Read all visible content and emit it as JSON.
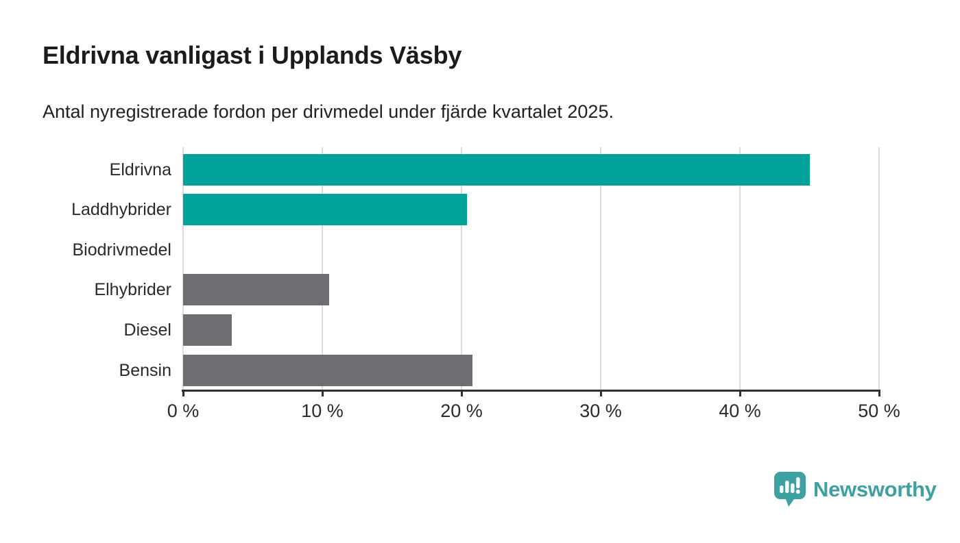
{
  "title": "Eldrivna vanligast i Upplands Väsby",
  "subtitle": "Antal nyregistrerade fordon per drivmedel under fjärde kvartalet 2025.",
  "colors": {
    "teal": "#00a29a",
    "gray": "#6d6d72",
    "grid": "#dcdcdc",
    "axis": "#2f2f2f",
    "text": "#2a2a2a",
    "logo": "#3fa0a2"
  },
  "chart_data": {
    "type": "bar",
    "orientation": "horizontal",
    "title": "Eldrivna vanligast i Upplands Väsby",
    "subtitle": "Antal nyregistrerade fordon per drivmedel under fjärde kvartalet 2025.",
    "categories": [
      "Eldrivna",
      "Laddhybrider",
      "Biodrivmedel",
      "Elhybrider",
      "Diesel",
      "Bensin"
    ],
    "values": [
      45.0,
      20.4,
      0,
      10.5,
      3.5,
      20.8
    ],
    "bar_colors": [
      "#00a29a",
      "#00a29a",
      "#6d6d72",
      "#6d6d72",
      "#6d6d72",
      "#6d6d72"
    ],
    "unit": "%",
    "xlim": [
      0,
      50
    ],
    "x_ticks": [
      0,
      10,
      20,
      30,
      40,
      50
    ],
    "x_tick_labels": [
      "0 %",
      "10 %",
      "20 %",
      "30 %",
      "40 %",
      "50 %"
    ],
    "grid": true,
    "legend": "none"
  },
  "footer": {
    "brand": "Newsworthy",
    "logo_icon": "bar-chart-speech-bubble-icon"
  }
}
